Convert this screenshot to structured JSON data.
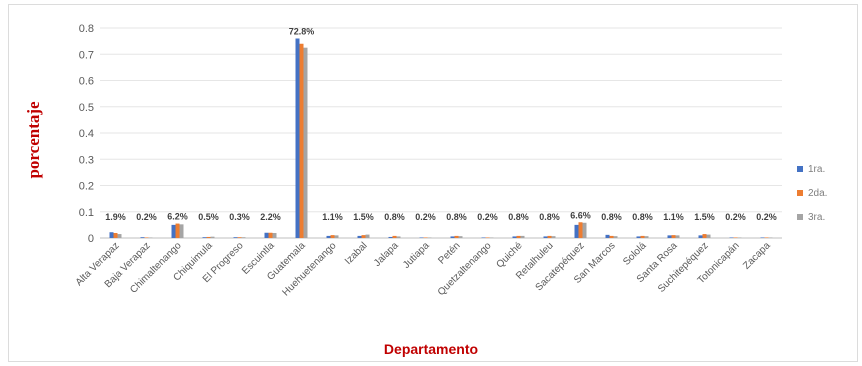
{
  "chart_data": {
    "type": "bar",
    "title": "",
    "xlabel": "Departamento",
    "ylabel": "porcentaje",
    "ylim": [
      0,
      0.8
    ],
    "yticks": [
      0,
      0.1,
      0.2,
      0.3,
      0.4,
      0.5,
      0.6,
      0.7,
      0.8
    ],
    "ytick_labels": [
      "0",
      "0.1",
      "0.2",
      "0.3",
      "0.4",
      "0.5",
      "0.6",
      "0.7",
      "0.8"
    ],
    "grid": true,
    "legend_position": "right",
    "categories": [
      "Alta Verapaz",
      "Baja Verapaz",
      "Chimaltenango",
      "Chiquimula",
      "El Progreso",
      "Escuintla",
      "Guatemala",
      "Huehuetenango",
      "Izabal",
      "Jalapa",
      "Jutiapa",
      "Petén",
      "Quetzaltenango",
      "Quiché",
      "Retalhuleu",
      "Sacatepéquez",
      "San Marcos",
      "Sololá",
      "Santa Rosa",
      "Suchitepéquez",
      "Totonicapán",
      "Zacapa"
    ],
    "data_labels": [
      "1.9%",
      "0.2%",
      "6.2%",
      "0.5%",
      "0.3%",
      "2.2%",
      "72.8%",
      "1.1%",
      "1.5%",
      "0.8%",
      "0.2%",
      "0.8%",
      "0.2%",
      "0.8%",
      "0.8%",
      "6.6%",
      "0.8%",
      "0.8%",
      "1.1%",
      "1.5%",
      "0.2%",
      "0.2%"
    ],
    "series": [
      {
        "name": "1ra.",
        "color": "#4472c4",
        "values": [
          0.022,
          0.003,
          0.05,
          0.003,
          0.003,
          0.02,
          0.76,
          0.008,
          0.008,
          0.004,
          0.002,
          0.006,
          0.002,
          0.006,
          0.006,
          0.05,
          0.012,
          0.006,
          0.01,
          0.01,
          0.002,
          0.002
        ]
      },
      {
        "name": "2da.",
        "color": "#ed7d31",
        "values": [
          0.019,
          0.002,
          0.055,
          0.004,
          0.003,
          0.02,
          0.74,
          0.011,
          0.011,
          0.008,
          0.002,
          0.008,
          0.002,
          0.008,
          0.008,
          0.06,
          0.008,
          0.008,
          0.011,
          0.015,
          0.002,
          0.002
        ]
      },
      {
        "name": "3ra.",
        "color": "#a5a5a5",
        "values": [
          0.015,
          0.002,
          0.052,
          0.005,
          0.003,
          0.019,
          0.725,
          0.01,
          0.013,
          0.006,
          0.002,
          0.007,
          0.002,
          0.008,
          0.007,
          0.058,
          0.007,
          0.007,
          0.01,
          0.013,
          0.002,
          0.002
        ]
      }
    ]
  }
}
